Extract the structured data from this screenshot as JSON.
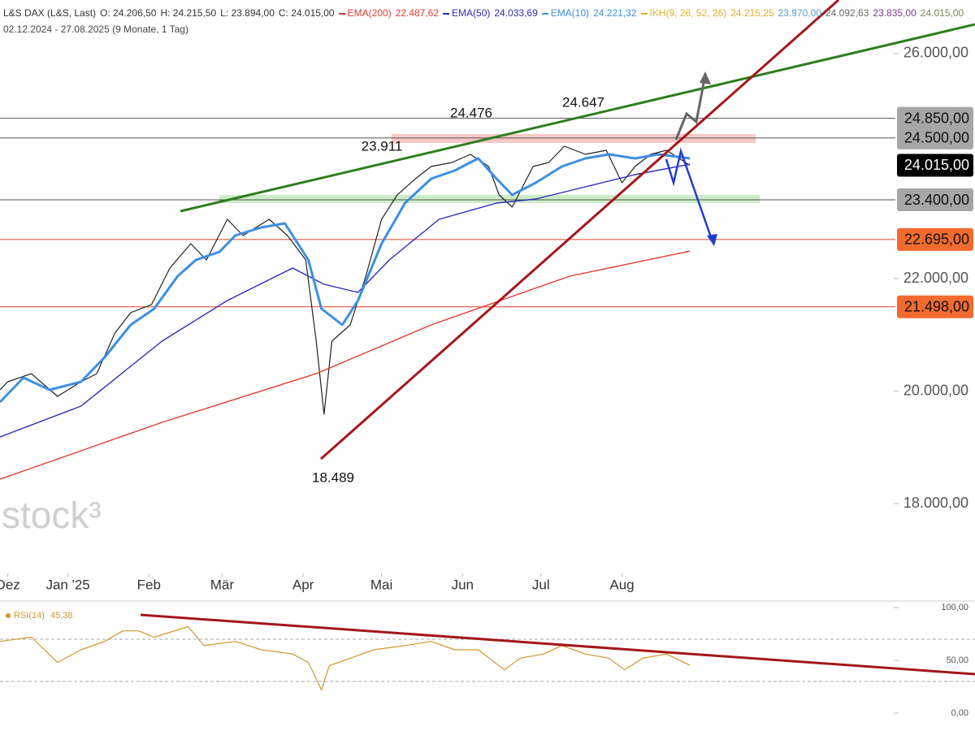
{
  "chart_data": [
    {
      "type": "line",
      "header": {
        "ohlc": [
          "O: 24.206,50",
          "H: 24.215,50",
          "L: 23.894,00",
          "C: 24.015,00"
        ],
        "ikh": {
          "name": "IKH(9, 26, 52, 26)",
          "color": "#e0b030",
          "items": [
            {
              "text": "24.215,25",
              "color": "#e0b030"
            },
            {
              "text": "23.970,00",
              "color": "#5aa0d0"
            },
            {
              "text": "24.092,63",
              "color": "#666666"
            },
            {
              "text": "23.835,00",
              "color": "#7a3a8a"
            },
            {
              "text": "24.015,00",
              "color": "#708a50"
            }
          ]
        },
        "range": "02.12.2024 - 27.08.2025 (9 Monate, 1 Tag)"
      },
      "watermark": "stock³",
      "xlim": [
        4,
        346
      ],
      "xticks": [
        {
          "value": 7,
          "label": "Dez"
        },
        {
          "value": 30,
          "label": "Jan '25"
        },
        {
          "value": 61,
          "label": "Feb"
        },
        {
          "value": 89,
          "label": "Mär"
        },
        {
          "value": 120,
          "label": "Apr"
        },
        {
          "value": 150,
          "label": "Mai"
        },
        {
          "value": 181,
          "label": "Jun"
        },
        {
          "value": 211,
          "label": "Jul"
        },
        {
          "value": 242,
          "label": "Aug"
        }
      ],
      "ylim": [
        16773,
        26953
      ],
      "yticks": [
        {
          "value": 26000,
          "label": "26.000,00"
        },
        {
          "value": 22000,
          "label": "22.000,00"
        },
        {
          "value": 20000,
          "label": "20.000,00"
        },
        {
          "value": 18000,
          "label": "18.000,00"
        }
      ],
      "series": [
        {
          "name": "L&S DAX (L&S, Last)",
          "color": "#222222",
          "x": [
            4,
            7,
            16,
            26,
            35,
            41,
            48,
            54,
            62,
            69,
            77,
            83,
            91,
            97,
            107,
            114,
            121,
            125,
            128,
            131,
            138,
            144,
            150,
            156,
            163,
            169,
            177,
            184,
            191,
            195,
            200,
            208,
            214,
            220,
            228,
            236,
            242,
            247,
            253,
            259,
            268
          ],
          "values": [
            20020,
            20166,
            20310,
            19906,
            20166,
            20310,
            21032,
            21394,
            21538,
            22188,
            22621,
            22332,
            23054,
            22765,
            23054,
            22765,
            22332,
            20888,
            19588,
            20888,
            21177,
            22043,
            23054,
            23487,
            23776,
            23993,
            24065,
            24209,
            23993,
            23487,
            23271,
            23993,
            24065,
            24354,
            24209,
            24282,
            23704,
            23993,
            24209,
            24282,
            24015
          ]
        },
        {
          "name": "EMA(200)",
          "color": "#e23b2e",
          "legend_value": "22.487,62",
          "x": [
            4,
            66,
            125,
            169,
            222,
            268
          ],
          "values": [
            18433,
            19444,
            20311,
            21177,
            22043,
            22488
          ]
        },
        {
          "name": "EMA(50)",
          "color": "#2b2bb8",
          "legend_value": "24.033,69",
          "x": [
            4,
            35,
            66,
            91,
            116,
            128,
            141,
            153,
            172,
            194,
            209,
            228,
            247,
            268
          ],
          "values": [
            19184,
            19733,
            20888,
            21610,
            22188,
            21899,
            21755,
            22332,
            23054,
            23343,
            23415,
            23632,
            23848,
            24034
          ]
        },
        {
          "name": "EMA(10)",
          "color": "#3d8fe0",
          "legend_value": "24.221,32",
          "x": [
            4,
            13,
            23,
            35,
            44,
            54,
            63,
            72,
            79,
            88,
            94,
            104,
            113,
            122,
            127,
            135,
            141,
            150,
            159,
            169,
            178,
            187,
            194,
            200,
            209,
            219,
            228,
            237,
            247,
            256,
            268
          ],
          "values": [
            19805,
            20238,
            20022,
            20166,
            20599,
            21177,
            21466,
            22043,
            22332,
            22477,
            22765,
            22910,
            22982,
            22332,
            21466,
            21177,
            21610,
            22621,
            23343,
            23776,
            23921,
            24137,
            23776,
            23487,
            23704,
            23993,
            24137,
            24209,
            24137,
            24209,
            24137
          ]
        }
      ],
      "levels": [
        {
          "value": 24500,
          "label": "24.500,00",
          "color": "#a6a6a6",
          "line": "#555555"
        },
        {
          "value": 24850,
          "label": "24.850,00",
          "color": "#a6a6a6",
          "line": "#555555"
        },
        {
          "value": 23400,
          "label": "23.400,00",
          "color": "#a6a6a6",
          "line": "#555555"
        },
        {
          "value": 22695,
          "label": "22.695,00",
          "color": "#f26b2e",
          "line": "#e0402a"
        },
        {
          "value": 21498,
          "label": "21.498,00",
          "color": "#f26b2e",
          "line": "#e0402a"
        }
      ],
      "last_price": {
        "value": 24015,
        "label": "24.015,00",
        "color": "#000000"
      },
      "annotations": [
        "24.647",
        "24.476",
        "23.911",
        "18.489"
      ]
    },
    {
      "type": "line",
      "xlim": [
        4,
        346
      ],
      "ylim": [
        -16.9,
        106.2
      ],
      "yticks": [
        {
          "value": 100,
          "label": "100,00"
        },
        {
          "value": 50,
          "label": "50,00"
        },
        {
          "value": 0,
          "label": "0,00"
        }
      ],
      "bands": [
        70,
        30
      ],
      "series": [
        {
          "name": "RSI(14)",
          "color": "#d4962e",
          "last_label": "45,38",
          "x": [
            4,
            16,
            26,
            35,
            44,
            51,
            57,
            63,
            76,
            82,
            94,
            104,
            116,
            122,
            127,
            130,
            138,
            147,
            159,
            169,
            178,
            187,
            197,
            203,
            212,
            219,
            228,
            237,
            243,
            250,
            259,
            268
          ],
          "values": [
            68,
            72,
            48,
            60,
            68,
            78,
            78,
            72,
            82,
            64,
            68,
            60,
            56,
            48,
            22,
            45,
            52,
            60,
            64,
            68,
            60,
            60,
            41,
            52,
            56,
            64,
            56,
            52,
            41,
            52,
            56,
            45.38
          ]
        }
      ]
    }
  ]
}
